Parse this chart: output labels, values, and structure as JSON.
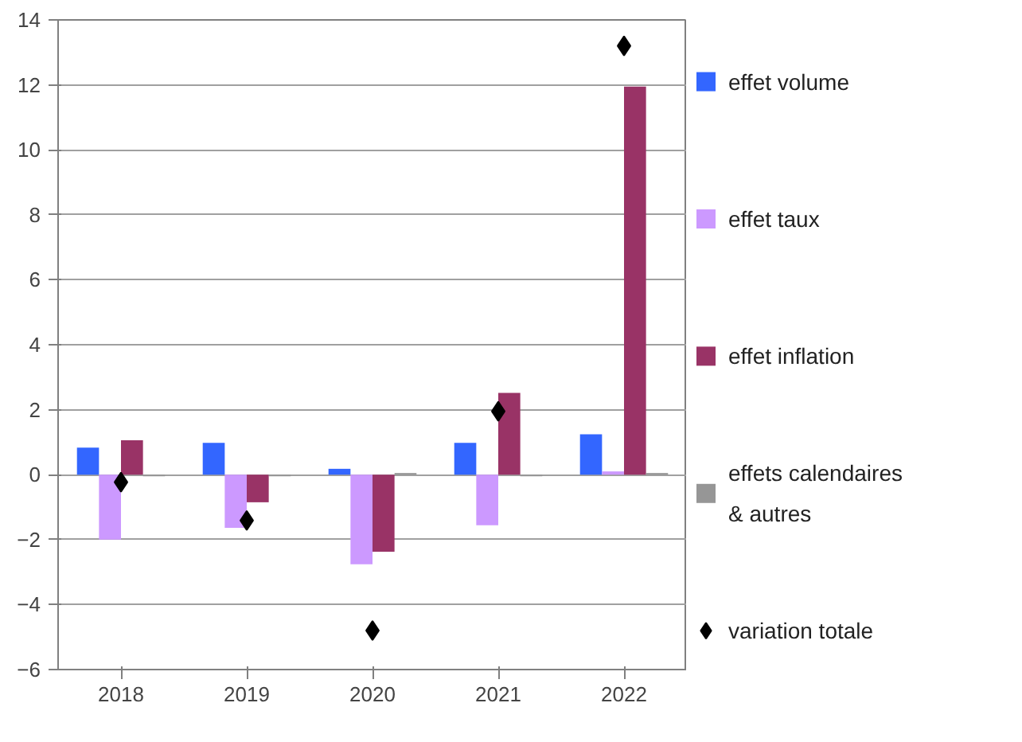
{
  "chart_data": {
    "type": "bar",
    "categories": [
      "2018",
      "2019",
      "2020",
      "2021",
      "2022"
    ],
    "series": [
      {
        "name": "effet volume",
        "color": "#3366ff",
        "values": [
          0.83,
          0.98,
          0.18,
          0.98,
          1.24
        ]
      },
      {
        "name": "effet taux",
        "color": "#cc99ff",
        "values": [
          -2.0,
          -1.64,
          -2.76,
          -1.56,
          0.1
        ]
      },
      {
        "name": "effet inflation",
        "color": "#993366",
        "values": [
          1.06,
          -0.85,
          -2.37,
          2.52,
          11.95
        ]
      },
      {
        "name": "effets calendaires\n& autres",
        "color": "#969696",
        "values": [
          -0.05,
          -0.05,
          0.05,
          -0.05,
          0.05
        ]
      },
      {
        "name": "variation totale",
        "type": "scatter",
        "color": "#000000",
        "marker": "diamond",
        "values": [
          -0.23,
          -1.41,
          -4.8,
          1.95,
          13.2
        ]
      }
    ],
    "ylim": [
      -6,
      14
    ],
    "yticks": [
      -6,
      -4,
      -2,
      0,
      2,
      4,
      6,
      8,
      10,
      12,
      14
    ],
    "grid": "y",
    "legend": "right"
  }
}
